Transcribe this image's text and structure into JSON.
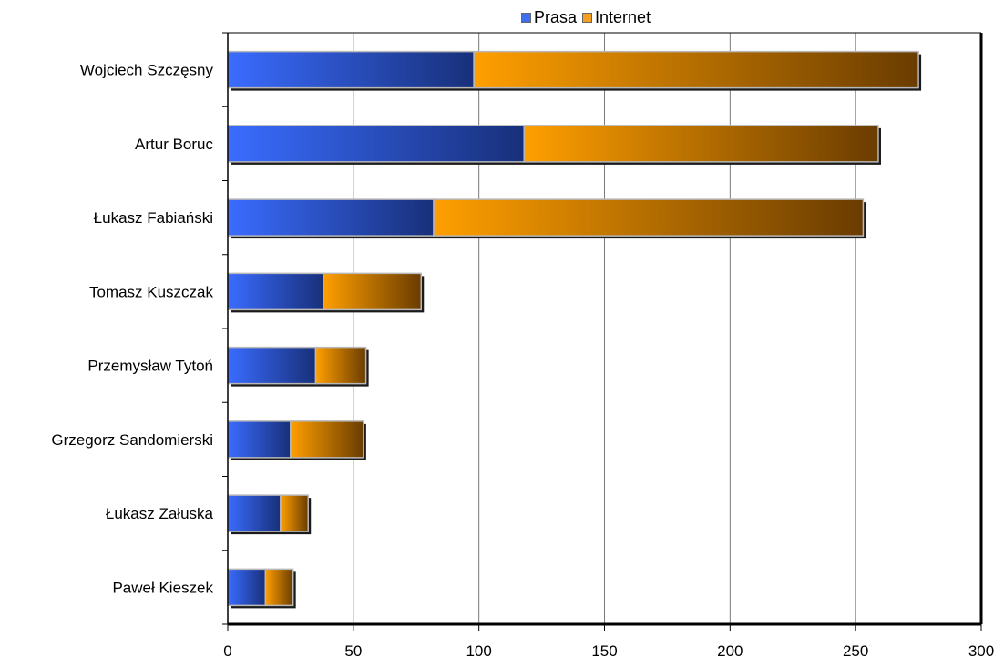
{
  "chart_data": {
    "type": "bar",
    "orientation": "horizontal",
    "stacked": true,
    "categories": [
      "Wojciech Szczęsny",
      "Artur Boruc",
      "Łukasz Fabiański",
      "Tomasz Kuszczak",
      "Przemysław Tytoń",
      "Grzegorz Sandomierski",
      "Łukasz Załuska",
      "Paweł Kieszek"
    ],
    "series": [
      {
        "name": "Prasa",
        "values": [
          98,
          118,
          82,
          38,
          35,
          25,
          21,
          15
        ],
        "color": "#2f5fe0"
      },
      {
        "name": "Internet",
        "values": [
          177,
          141,
          171,
          39,
          20,
          29,
          11,
          11
        ],
        "color": "#f59a10"
      }
    ],
    "xlim": [
      0,
      300
    ],
    "xticks": [
      "0",
      "50",
      "100",
      "150",
      "200",
      "250",
      "300"
    ],
    "grid": true,
    "legend_position": "top"
  }
}
